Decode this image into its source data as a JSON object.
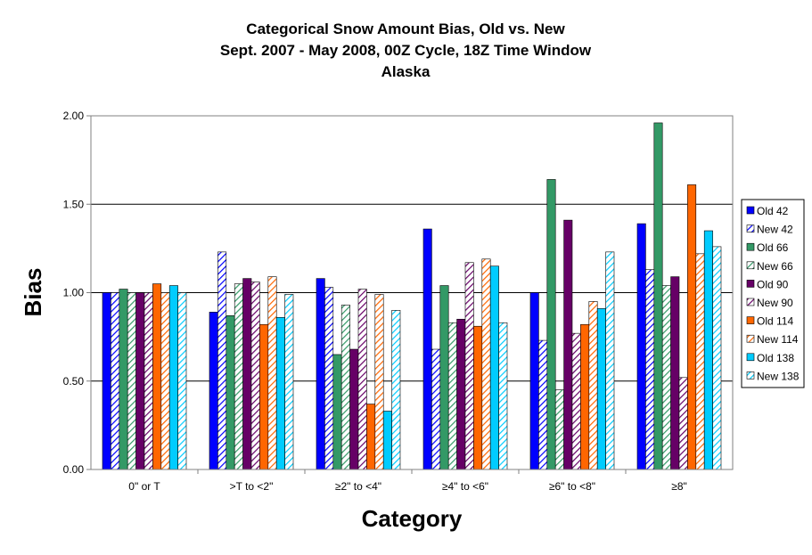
{
  "chart_data": {
    "type": "bar",
    "title_lines": [
      "Categorical Snow Amount Bias, Old vs. New",
      "Sept. 2007 - May 2008, 00Z Cycle, 18Z Time Window",
      "Alaska"
    ],
    "xlabel": "Category",
    "ylabel": "Bias",
    "ylim": [
      0,
      2
    ],
    "yticks": [
      "0.00",
      "0.50",
      "1.00",
      "1.50",
      "2.00"
    ],
    "ytick_values": [
      0,
      0.5,
      1,
      1.5,
      2
    ],
    "grid": "horizontal major",
    "legend_position": "right",
    "categories": [
      "0\" or T",
      ">T to <2\"",
      "≥2\" to <4\"",
      "≥4\" to <6\"",
      "≥6\" to <8\"",
      "≥8\""
    ],
    "series": [
      {
        "name": "Old 42",
        "color": "#0000ff",
        "pattern": "solid",
        "values": [
          1.0,
          0.89,
          1.08,
          1.36,
          1.0,
          1.39
        ]
      },
      {
        "name": "New 42",
        "color": "#0000ff",
        "pattern": "hatched",
        "values": [
          1.0,
          1.23,
          1.03,
          0.68,
          0.73,
          1.13
        ]
      },
      {
        "name": "Old 66",
        "color": "#339966",
        "pattern": "solid",
        "values": [
          1.02,
          0.87,
          0.65,
          1.04,
          1.64,
          1.96
        ]
      },
      {
        "name": "New 66",
        "color": "#339966",
        "pattern": "hatched",
        "values": [
          1.0,
          1.05,
          0.93,
          0.83,
          0.45,
          1.04
        ]
      },
      {
        "name": "Old 90",
        "color": "#660066",
        "pattern": "solid",
        "values": [
          1.0,
          1.08,
          0.68,
          0.85,
          1.41,
          1.09
        ]
      },
      {
        "name": "New 90",
        "color": "#660066",
        "pattern": "hatched",
        "values": [
          1.0,
          1.06,
          1.02,
          1.17,
          0.77,
          0.52
        ]
      },
      {
        "name": "Old 114",
        "color": "#ff6600",
        "pattern": "solid",
        "values": [
          1.05,
          0.82,
          0.37,
          0.81,
          0.82,
          1.61
        ]
      },
      {
        "name": "New 114",
        "color": "#ff6600",
        "pattern": "hatched",
        "values": [
          1.0,
          1.09,
          0.99,
          1.19,
          0.95,
          1.22
        ]
      },
      {
        "name": "Old 138",
        "color": "#00ccff",
        "pattern": "solid",
        "values": [
          1.04,
          0.86,
          0.33,
          1.15,
          0.91,
          1.35
        ]
      },
      {
        "name": "New 138",
        "color": "#00ccff",
        "pattern": "hatched",
        "values": [
          1.0,
          0.99,
          0.9,
          0.83,
          1.23,
          1.26
        ]
      }
    ]
  }
}
